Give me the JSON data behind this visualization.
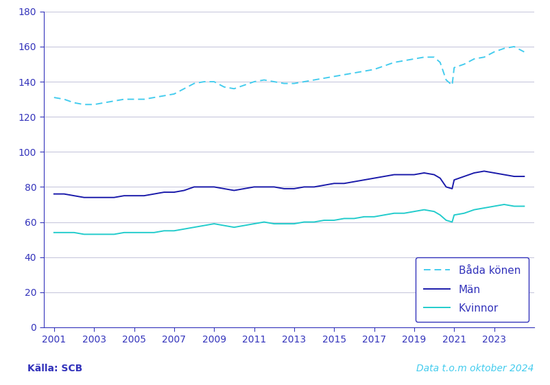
{
  "background_color": "#ffffff",
  "plot_bg_color": "#ffffff",
  "grid_color": "#c8c8dc",
  "axis_color": "#3333bb",
  "text_color": "#3333bb",
  "source_text": "Källa: SCB",
  "data_text": "Data t.o.m oktober 2024",
  "ylim": [
    0,
    180
  ],
  "yticks": [
    0,
    20,
    40,
    60,
    80,
    100,
    120,
    140,
    160,
    180
  ],
  "xticks": [
    2001,
    2003,
    2005,
    2007,
    2009,
    2011,
    2013,
    2015,
    2017,
    2019,
    2021,
    2023
  ],
  "xlim_start": 2000.5,
  "xlim_end": 2025.0,
  "legend_entries": [
    "Båda könen",
    "Män",
    "Kvinnor"
  ],
  "color_bada": "#44ccee",
  "color_man": "#1a1aaa",
  "color_kvinnor": "#22cccc",
  "years": [
    2001,
    2001.5,
    2002,
    2002.5,
    2003,
    2003.5,
    2004,
    2004.5,
    2005,
    2005.5,
    2006,
    2006.5,
    2007,
    2007.5,
    2008,
    2008.5,
    2009,
    2009.5,
    2010,
    2010.5,
    2011,
    2011.5,
    2012,
    2012.5,
    2013,
    2013.5,
    2014,
    2014.5,
    2015,
    2015.5,
    2016,
    2016.5,
    2017,
    2017.5,
    2018,
    2018.5,
    2019,
    2019.5,
    2020,
    2020.3,
    2020.6,
    2020.9,
    2021,
    2021.5,
    2022,
    2022.5,
    2023,
    2023.5,
    2024,
    2024.5
  ],
  "bada_konen": [
    131,
    130,
    128,
    127,
    127,
    128,
    129,
    130,
    130,
    130,
    131,
    132,
    133,
    136,
    139,
    140,
    140,
    137,
    136,
    138,
    140,
    141,
    140,
    139,
    139,
    140,
    141,
    142,
    143,
    144,
    145,
    146,
    147,
    149,
    151,
    152,
    153,
    154,
    154,
    151,
    141,
    138,
    148,
    150,
    153,
    154,
    157,
    159,
    160,
    157
  ],
  "man": [
    76,
    76,
    75,
    74,
    74,
    74,
    74,
    75,
    75,
    75,
    76,
    77,
    77,
    78,
    80,
    80,
    80,
    79,
    78,
    79,
    80,
    80,
    80,
    79,
    79,
    80,
    80,
    81,
    82,
    82,
    83,
    84,
    85,
    86,
    87,
    87,
    87,
    88,
    87,
    85,
    80,
    79,
    84,
    86,
    88,
    89,
    88,
    87,
    86,
    86
  ],
  "kvinnor": [
    54,
    54,
    54,
    53,
    53,
    53,
    53,
    54,
    54,
    54,
    54,
    55,
    55,
    56,
    57,
    58,
    59,
    58,
    57,
    58,
    59,
    60,
    59,
    59,
    59,
    60,
    60,
    61,
    61,
    62,
    62,
    63,
    63,
    64,
    65,
    65,
    66,
    67,
    66,
    64,
    61,
    60,
    64,
    65,
    67,
    68,
    69,
    70,
    69,
    69
  ]
}
